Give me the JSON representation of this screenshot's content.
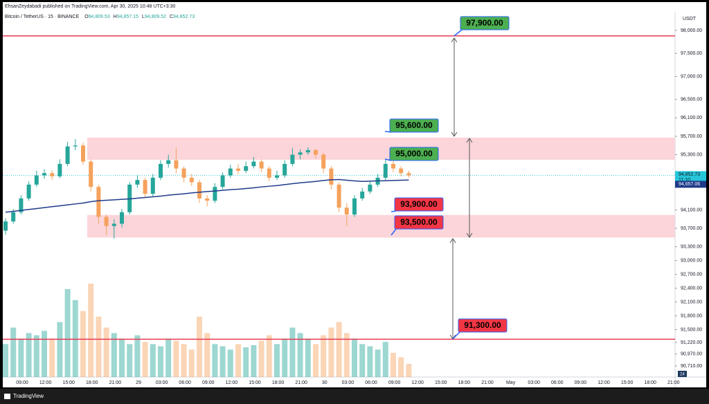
{
  "header": {
    "publisher": "EhsanZeydabadi published on TradingView.com, Apr 30, 2025 10:48 UTC+3:30",
    "symbol": "Bitcoin / TetherUS · 15 · BINANCE",
    "o_label": "O",
    "o": "94,809.53",
    "h_label": "H",
    "h": "94,857.15",
    "l_label": "L",
    "l": "94,809.52",
    "c_label": "C",
    "c": "94,852.73"
  },
  "footer": {
    "brand": "TradingView",
    "corner": "24"
  },
  "chart_data": {
    "type": "candlestick",
    "currency": "USDT",
    "ylim": [
      90470,
      98390
    ],
    "yticks": [
      {
        "value": 98000,
        "label": "98,000.00"
      },
      {
        "value": 97500,
        "label": "97,500.00"
      },
      {
        "value": 97000,
        "label": "97,000.00"
      },
      {
        "value": 96500,
        "label": "96,500.00"
      },
      {
        "value": 96100,
        "label": "96,100.00"
      },
      {
        "value": 95700,
        "label": "95,700.00"
      },
      {
        "value": 95300,
        "label": "95,300.00"
      },
      {
        "value": 94100,
        "label": "94,100.00"
      },
      {
        "value": 93700,
        "label": "93,700.00"
      },
      {
        "value": 93300,
        "label": "93,300.00"
      },
      {
        "value": 93000,
        "label": "93,000.00"
      },
      {
        "value": 92700,
        "label": "92,700.00"
      },
      {
        "value": 92400,
        "label": "92,400.00"
      },
      {
        "value": 92100,
        "label": "92,100.00"
      },
      {
        "value": 91800,
        "label": "91,800.00"
      },
      {
        "value": 91500,
        "label": "91,500.00"
      },
      {
        "value": 91220,
        "label": "91,220.00"
      },
      {
        "value": 90970,
        "label": "90,970.00"
      },
      {
        "value": 90710,
        "label": "90,710.00"
      }
    ],
    "x_labels": [
      "09:00",
      "12:00",
      "15:00",
      "18:00",
      "21:00",
      "29",
      "03:00",
      "06:00",
      "09:00",
      "12:00",
      "15:00",
      "18:00",
      "21:00",
      "30",
      "03:00",
      "06:00",
      "09:00",
      "12:00",
      "15:00",
      "18:00",
      "21:00",
      "May",
      "03:00",
      "06:00",
      "09:00",
      "12:00",
      "15:00",
      "18:00",
      "21:00"
    ],
    "up_color": "#26a69a",
    "down_color": "#f5a25d",
    "ma_color": "#1e3a8a",
    "open": [
      93650,
      93850,
      94050,
      94350,
      94650,
      94850,
      94900,
      94830,
      95100,
      95480,
      95500,
      95150,
      94600,
      93950,
      93750,
      93800,
      94050,
      94650,
      94750,
      94450,
      94800,
      95100,
      95180,
      95000,
      94800,
      94700,
      94350,
      94300,
      94600,
      94850,
      95000,
      94950,
      95050,
      95150,
      95000,
      94800,
      94850,
      95100,
      95300,
      95350,
      95400,
      95300,
      95000,
      94650,
      94150,
      94000,
      94350,
      94500,
      94650,
      94800,
      95100,
      95000,
      94900
    ],
    "high": [
      93920,
      94120,
      94420,
      94720,
      94950,
      94980,
      94960,
      95200,
      95580,
      95640,
      95560,
      95200,
      94650,
      94000,
      93900,
      94120,
      94700,
      94850,
      94800,
      94880,
      95180,
      95300,
      95450,
      95050,
      94880,
      94750,
      94420,
      94680,
      94920,
      95080,
      95100,
      95150,
      95250,
      95200,
      95050,
      94950,
      95180,
      95450,
      95420,
      95460,
      95430,
      95340,
      95050,
      94700,
      94250,
      94420,
      94580,
      94720,
      94880,
      95200,
      95180,
      95050,
      94950
    ],
    "low": [
      93560,
      93800,
      94000,
      94300,
      94600,
      94780,
      94750,
      94790,
      95050,
      95400,
      95080,
      94500,
      93800,
      93550,
      93480,
      93720,
      94000,
      94580,
      94380,
      94400,
      94750,
      95020,
      94900,
      94700,
      94620,
      94250,
      94180,
      94250,
      94550,
      94800,
      94880,
      94900,
      95000,
      94920,
      94720,
      94750,
      94800,
      95050,
      95200,
      95300,
      95220,
      94900,
      94550,
      94050,
      93750,
      93950,
      94300,
      94450,
      94600,
      94750,
      94920,
      94830,
      94800
    ],
    "close": [
      93850,
      94050,
      94350,
      94650,
      94850,
      94900,
      94830,
      95100,
      95480,
      95500,
      95150,
      94600,
      93950,
      93750,
      93800,
      94050,
      94650,
      94750,
      94450,
      94800,
      95100,
      95180,
      95000,
      94800,
      94700,
      94350,
      94300,
      94600,
      94850,
      95000,
      94950,
      95050,
      95150,
      95000,
      94800,
      94850,
      95100,
      95300,
      95350,
      95400,
      95300,
      95000,
      94650,
      94150,
      94000,
      94350,
      94500,
      94650,
      94800,
      95100,
      95000,
      94900,
      94850
    ],
    "volume": [
      30,
      45,
      35,
      40,
      38,
      42,
      35,
      50,
      80,
      70,
      60,
      85,
      55,
      45,
      40,
      35,
      30,
      38,
      32,
      30,
      28,
      35,
      33,
      30,
      25,
      55,
      40,
      30,
      28,
      25,
      30,
      27,
      29,
      33,
      38,
      30,
      35,
      45,
      40,
      35,
      30,
      38,
      45,
      50,
      40,
      35,
      30,
      28,
      25,
      32,
      22,
      18,
      12
    ],
    "ma": [
      94050,
      94070,
      94090,
      94110,
      94130,
      94150,
      94170,
      94190,
      94210,
      94230,
      94250,
      94280,
      94300,
      94310,
      94320,
      94330,
      94340,
      94355,
      94370,
      94385,
      94400,
      94420,
      94435,
      94450,
      94470,
      94485,
      94500,
      94510,
      94525,
      94540,
      94550,
      94565,
      94580,
      94600,
      94615,
      94630,
      94650,
      94670,
      94690,
      94705,
      94720,
      94740,
      94755,
      94760,
      94745,
      94730,
      94720,
      94725,
      94730,
      94735,
      94740,
      94745,
      94750
    ],
    "zones": [
      {
        "top": 95670,
        "bottom": 95190,
        "color": "#fbd5d9"
      },
      {
        "top": 93990,
        "bottom": 93500,
        "color": "#fbd5d9"
      }
    ],
    "levels": [
      {
        "value": 97880,
        "color": "#e53950"
      },
      {
        "value": 91290,
        "color": "#e53950"
      }
    ],
    "annotations": [
      {
        "label": "97,900.00",
        "value": 97900,
        "color": "#4caf50"
      },
      {
        "label": "95,600.00",
        "value": 95600,
        "color": "#4caf50"
      },
      {
        "label": "95,000.00",
        "value": 95000,
        "color": "#4caf50"
      },
      {
        "label": "93,900.00",
        "value": 93900,
        "color": "#f23645"
      },
      {
        "label": "93,500.00",
        "value": 93500,
        "color": "#f23645"
      },
      {
        "label": "91,300.00",
        "value": 91300,
        "color": "#f23645"
      }
    ],
    "last_price": {
      "value": 94852.73,
      "label": "94,852.73",
      "countdown": "11:10",
      "color": "#26c6da"
    },
    "ma_tag": {
      "value": 94657.06,
      "label": "94,657.06",
      "color": "#1e3a8a"
    }
  }
}
